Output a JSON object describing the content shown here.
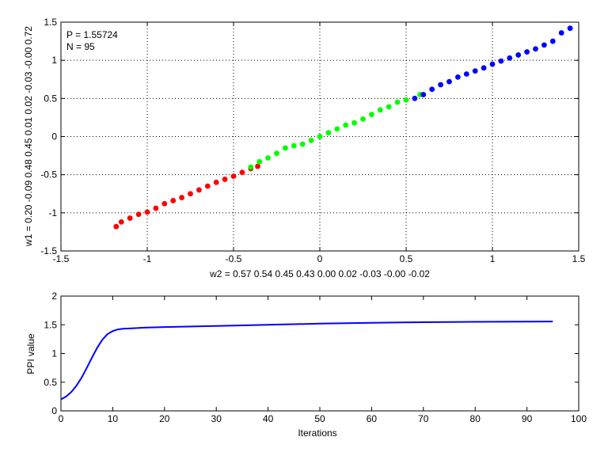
{
  "chart_data": [
    {
      "type": "scatter",
      "title": "",
      "xlabel": "w2 = 0.57  0.54  0.45  0.43  0.00  0.02  -0.03  -0.00  -0.02",
      "ylabel": "w1 = 0.20  -0.09  0.48  0.45  0.01  0.02  -0.03  -0.00  0.72",
      "xlim": [
        -1.5,
        1.5
      ],
      "ylim": [
        -1.5,
        1.5
      ],
      "xticks": [
        "-1.5",
        "-1",
        "-0.5",
        "0",
        "0.5",
        "1",
        "1.5"
      ],
      "yticks": [
        "-1.5",
        "-1",
        "-0.5",
        "0",
        "0.5",
        "1",
        "1.5"
      ],
      "grid": true,
      "annotations": [
        "P = 1.55724",
        "N = 95"
      ],
      "colors": {
        "red": "#ff0000",
        "green": "#00ff00",
        "blue": "#0000ff"
      },
      "series": [
        {
          "color": "red",
          "x": [
            -1.18,
            -1.15,
            -1.1,
            -1.05,
            -1.0,
            -0.95,
            -0.9,
            -0.85,
            -0.8,
            -0.75,
            -0.7,
            -0.65,
            -0.6,
            -0.55,
            -0.5,
            -0.45,
            -0.4,
            -0.36
          ],
          "y": [
            -1.18,
            -1.12,
            -1.07,
            -1.02,
            -0.99,
            -0.94,
            -0.88,
            -0.84,
            -0.8,
            -0.75,
            -0.7,
            -0.65,
            -0.6,
            -0.56,
            -0.52,
            -0.47,
            -0.42,
            -0.39
          ]
        },
        {
          "color": "green",
          "x": [
            -0.4,
            -0.35,
            -0.3,
            -0.25,
            -0.2,
            -0.15,
            -0.1,
            -0.05,
            0.0,
            0.05,
            0.1,
            0.15,
            0.2,
            0.25,
            0.3,
            0.35,
            0.4,
            0.45,
            0.5,
            0.58
          ],
          "y": [
            -0.4,
            -0.33,
            -0.28,
            -0.22,
            -0.15,
            -0.12,
            -0.1,
            -0.05,
            0.0,
            0.05,
            0.1,
            0.15,
            0.18,
            0.23,
            0.29,
            0.35,
            0.39,
            0.45,
            0.48,
            0.55
          ]
        },
        {
          "color": "blue",
          "x": [
            0.55,
            0.6,
            0.65,
            0.7,
            0.75,
            0.8,
            0.85,
            0.9,
            0.95,
            1.0,
            1.05,
            1.1,
            1.15,
            1.2,
            1.25,
            1.3,
            1.35,
            1.4,
            1.45
          ],
          "y": [
            0.5,
            0.55,
            0.62,
            0.68,
            0.72,
            0.78,
            0.82,
            0.86,
            0.9,
            0.95,
            0.99,
            1.03,
            1.07,
            1.11,
            1.15,
            1.2,
            1.25,
            1.36,
            1.42
          ]
        }
      ]
    },
    {
      "type": "line",
      "title": "",
      "xlabel": "Iterations",
      "ylabel": "PPI value",
      "xlim": [
        0,
        100
      ],
      "ylim": [
        0,
        2
      ],
      "xticks": [
        "0",
        "10",
        "20",
        "30",
        "40",
        "50",
        "60",
        "70",
        "80",
        "90",
        "100"
      ],
      "yticks": [
        "0",
        "0.5",
        "1",
        "1.5",
        "2"
      ],
      "grid": false,
      "series": [
        {
          "color": "blue",
          "x": [
            0,
            1,
            2,
            3,
            4,
            5,
            6,
            7,
            8,
            9,
            10,
            11,
            12,
            14,
            16,
            20,
            30,
            40,
            50,
            60,
            70,
            80,
            90,
            95
          ],
          "y": [
            0.2,
            0.25,
            0.33,
            0.44,
            0.58,
            0.75,
            0.93,
            1.1,
            1.24,
            1.34,
            1.39,
            1.42,
            1.43,
            1.44,
            1.45,
            1.46,
            1.48,
            1.5,
            1.52,
            1.535,
            1.545,
            1.552,
            1.556,
            1.557
          ]
        }
      ]
    }
  ]
}
